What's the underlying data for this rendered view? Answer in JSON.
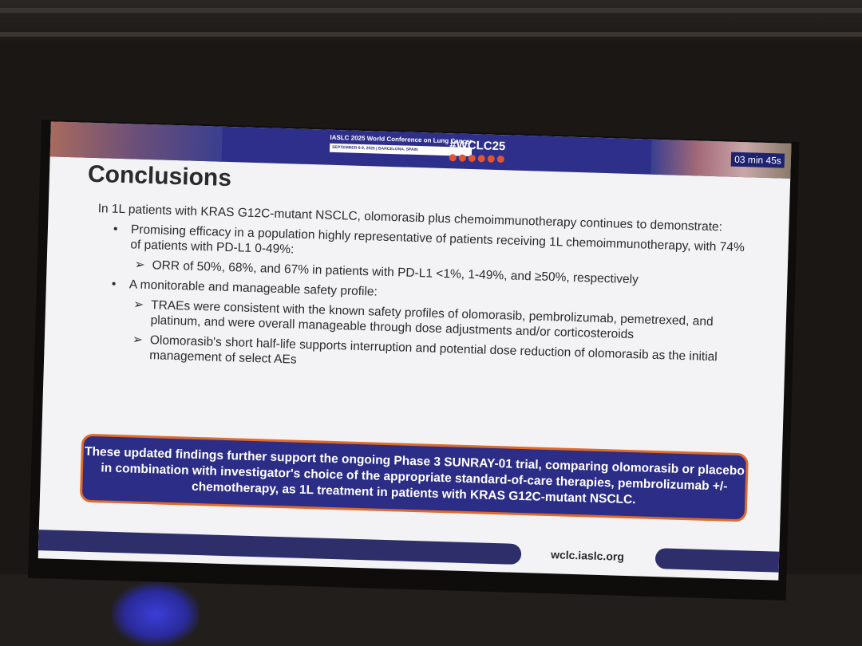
{
  "header": {
    "org": "IASLC",
    "conference": "2025 World Conference on Lung Cancer",
    "dates": "SEPTEMBER 6-9, 2025 | BARCELONA, SPAIN",
    "hashtag": "#WCLC25",
    "timer": "03 min 45s",
    "social_icons": [
      "facebook-icon",
      "linkedin-icon",
      "x-icon",
      "instagram-icon",
      "youtube-icon",
      "podcast-icon"
    ],
    "accent": "#2e2f8a"
  },
  "slide": {
    "title": "Conclusions",
    "intro": "In 1L patients with KRAS G12C-mutant NSCLC, olomorasib plus chemoimmunotherapy continues to demonstrate:",
    "bullets": [
      {
        "text": "Promising efficacy in a population highly representative of patients receiving 1L chemoimmunotherapy, with 74% of patients with PD-L1 0-49%:",
        "sub": [
          "ORR of 50%, 68%, and 67% in patients with PD-L1 <1%, 1-49%, and ≥50%, respectively"
        ]
      },
      {
        "text": "A monitorable and manageable safety profile:",
        "sub": [
          "TRAEs were consistent with the known safety profiles of olomorasib, pembrolizumab, pemetrexed, and platinum, and were overall manageable through dose adjustments and/or corticosteroids",
          "Olomorasib's short half-life supports interruption and potential dose reduction of olomorasib as the initial management of select AEs"
        ]
      }
    ],
    "callout": "These updated findings further support the ongoing Phase 3 SUNRAY-01 trial, comparing olomorasib or placebo in combination with investigator's choice of the appropriate standard-of-care therapies, pembrolizumab +/- chemotherapy, as 1L treatment in patients with KRAS G12C-mutant NSCLC.",
    "footer_url": "wclc.iaslc.org"
  }
}
